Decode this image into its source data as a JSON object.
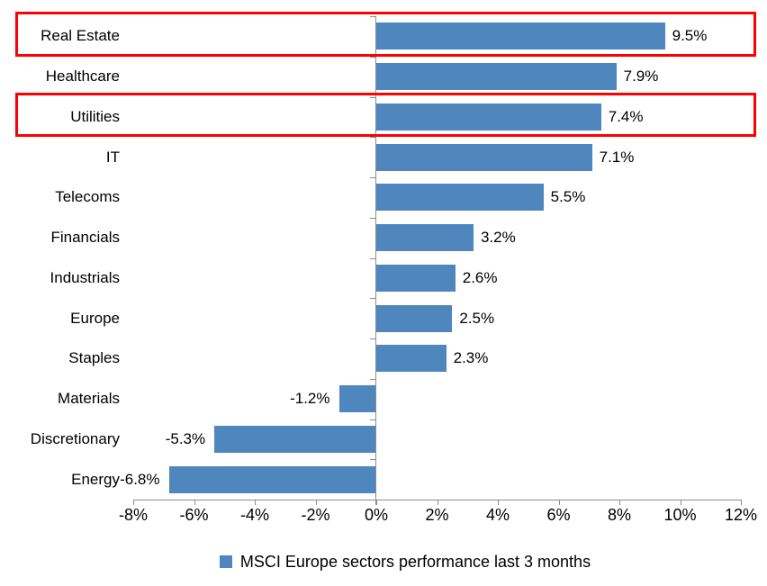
{
  "chart_data": {
    "type": "bar",
    "orientation": "horizontal",
    "title": "",
    "categories": [
      "Real Estate",
      "Healthcare",
      "Utilities",
      "IT",
      "Telecoms",
      "Financials",
      "Industrials",
      "Europe",
      "Staples",
      "Materials",
      "Discretionary",
      "Energy"
    ],
    "values": [
      9.5,
      7.9,
      7.4,
      7.1,
      5.5,
      3.2,
      2.6,
      2.5,
      2.3,
      -1.2,
      -5.3,
      -6.8
    ],
    "value_labels": [
      "9.5%",
      "7.9%",
      "7.4%",
      "7.1%",
      "5.5%",
      "3.2%",
      "2.6%",
      "2.5%",
      "2.3%",
      "-1.2%",
      "-5.3%",
      "-6.8%"
    ],
    "x_tick_labels": [
      "-8%",
      "-6%",
      "-4%",
      "-2%",
      "0%",
      "2%",
      "4%",
      "6%",
      "8%",
      "10%",
      "12%"
    ],
    "xlim": [
      -8,
      12
    ],
    "grid": false,
    "legend_position": "bottom",
    "legend": [
      {
        "label": "MSCI Europe sectors performance last 3 months",
        "color": "#4f86be"
      }
    ],
    "highlighted_categories": [
      "Real Estate",
      "Utilities"
    ],
    "colors": {
      "bar": "#4f86be",
      "axis": "#8c8c8c",
      "text": "#000000",
      "highlight_box": "#ff0000"
    }
  }
}
